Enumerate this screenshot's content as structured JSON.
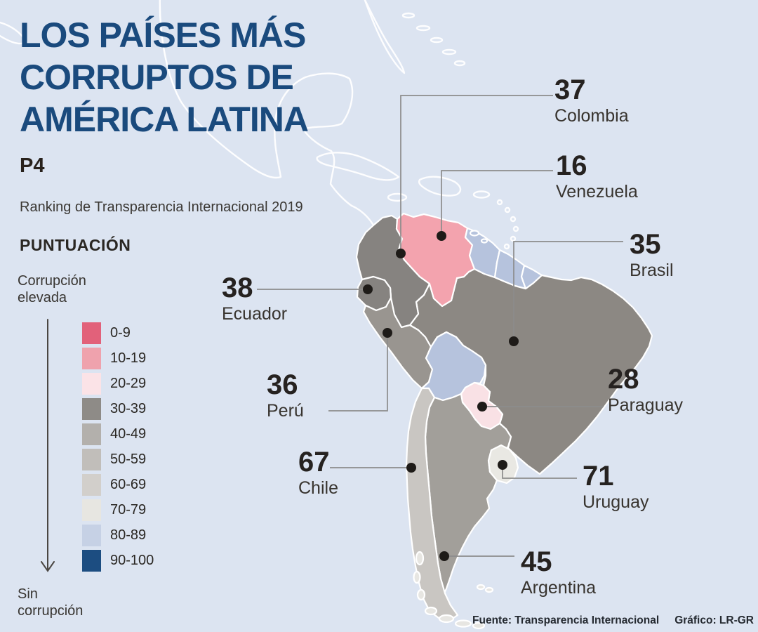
{
  "header": {
    "title_lines": [
      "LOS PAÍSES MÁS",
      "CORRUPTOS DE",
      "AMÉRICA LATINA"
    ],
    "page_ref": "P4",
    "subtitle": "Ranking de Transparencia Internacional 2019"
  },
  "legend": {
    "title": "PUNTUACIÓN",
    "high_label": "Corrupción elevada",
    "low_label": "Sin corrupción",
    "arrow_icon": "down-arrow-icon",
    "ranges": [
      {
        "label": "0-9",
        "color": "#e2617a"
      },
      {
        "label": "10-19",
        "color": "#efa2ad"
      },
      {
        "label": "20-29",
        "color": "#fbe3e7"
      },
      {
        "label": "30-39",
        "color": "#8e8b87"
      },
      {
        "label": "40-49",
        "color": "#b3b0ac"
      },
      {
        "label": "50-59",
        "color": "#c1beba"
      },
      {
        "label": "60-69",
        "color": "#d2cfcb"
      },
      {
        "label": "70-79",
        "color": "#e7e6e1"
      },
      {
        "label": "80-89",
        "color": "#c6d1e5"
      },
      {
        "label": "90-100",
        "color": "#1c4d81"
      }
    ]
  },
  "map": {
    "ocean_color": "#dce4f1",
    "border_color": "#ffffff",
    "callout_line_color": "#8c8c8c",
    "dot_color": "#1e1b18",
    "countries": {
      "colombia": {
        "name": "Colombia",
        "value": "37",
        "color": "#868380"
      },
      "venezuela": {
        "name": "Venezuela",
        "value": "16",
        "color": "#f3a3ae"
      },
      "brasil": {
        "name": "Brasil",
        "value": "35",
        "color": "#8c8883"
      },
      "ecuador": {
        "name": "Ecuador",
        "value": "38",
        "color": "#868380"
      },
      "peru": {
        "name": "Perú",
        "value": "36",
        "color": "#999590"
      },
      "paraguay": {
        "name": "Paraguay",
        "value": "28",
        "color": "#f9e1e5"
      },
      "chile": {
        "name": "Chile",
        "value": "67",
        "color": "#c9c6c2"
      },
      "uruguay": {
        "name": "Uruguay",
        "value": "71",
        "color": "#e9e8e3"
      },
      "argentina": {
        "name": "Argentina",
        "value": "45",
        "color": "#a29f9a"
      },
      "bolivia": {
        "color": "#b6c3dd"
      },
      "guyanas": {
        "color": "#b6c3dd"
      },
      "islands": {
        "color": "#e7e6e2"
      }
    }
  },
  "footer": {
    "source": "Fuente: Transparencia Internacional",
    "credit": "Gráfico: LR-GR"
  }
}
